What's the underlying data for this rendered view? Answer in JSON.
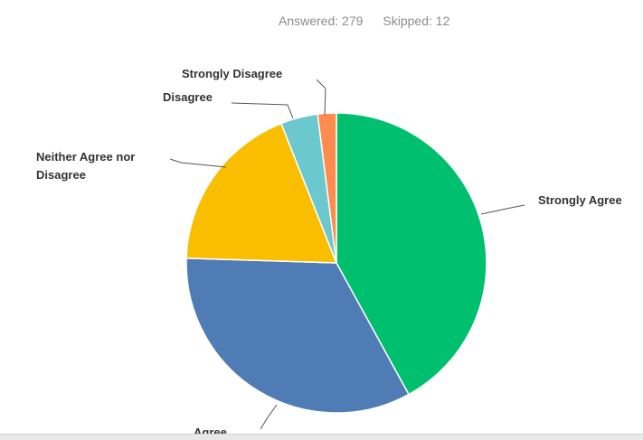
{
  "header": {
    "answered_label": "Answered: 279",
    "skipped_label": "Skipped: 12"
  },
  "chart_data": {
    "type": "pie",
    "slices": [
      {
        "label": "Strongly Agree",
        "value": 42.0,
        "color": "#00bf6f"
      },
      {
        "label": "Agree",
        "value": 33.5,
        "color": "#507cb6"
      },
      {
        "label": "Neither Agree nor Disagree",
        "value": 18.5,
        "color": "#f9be00"
      },
      {
        "label": "Disagree",
        "value": 4.0,
        "color": "#6bc8cd"
      },
      {
        "label": "Strongly Disagree",
        "value": 2.0,
        "color": "#ff8b4f"
      }
    ]
  }
}
